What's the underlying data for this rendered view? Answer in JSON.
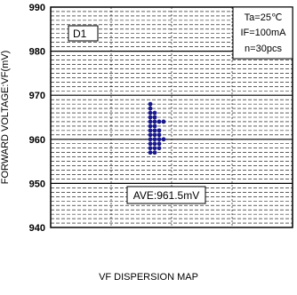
{
  "chart_data": {
    "type": "scatter",
    "ylabel": "FORWARD VOLTAGE:VF(mV)",
    "xlabel": "",
    "ylim": [
      940,
      990
    ],
    "yticks": [
      940,
      950,
      960,
      970,
      980,
      990
    ],
    "grid": true,
    "annotations": {
      "label": "D1",
      "conditions": [
        "Ta=25℃",
        "IF=100mA",
        "n=30pcs"
      ],
      "average": "AVE:961.5mV"
    },
    "series": [
      {
        "color": "#1a1a8c",
        "points": [
          {
            "col": 0,
            "y": 957
          },
          {
            "col": 0,
            "y": 958
          },
          {
            "col": 0,
            "y": 959
          },
          {
            "col": 0,
            "y": 960
          },
          {
            "col": 0,
            "y": 961
          },
          {
            "col": 0,
            "y": 962
          },
          {
            "col": 0,
            "y": 963
          },
          {
            "col": 0,
            "y": 964
          },
          {
            "col": 0,
            "y": 965
          },
          {
            "col": 0,
            "y": 966
          },
          {
            "col": 0,
            "y": 967
          },
          {
            "col": 0,
            "y": 968
          },
          {
            "col": 1,
            "y": 957
          },
          {
            "col": 1,
            "y": 958
          },
          {
            "col": 1,
            "y": 959
          },
          {
            "col": 1,
            "y": 960
          },
          {
            "col": 1,
            "y": 961
          },
          {
            "col": 1,
            "y": 962
          },
          {
            "col": 1,
            "y": 963
          },
          {
            "col": 1,
            "y": 964
          },
          {
            "col": 1,
            "y": 965
          },
          {
            "col": 1,
            "y": 966
          },
          {
            "col": 2,
            "y": 958
          },
          {
            "col": 2,
            "y": 959
          },
          {
            "col": 2,
            "y": 960
          },
          {
            "col": 2,
            "y": 961
          },
          {
            "col": 2,
            "y": 962
          },
          {
            "col": 2,
            "y": 964
          },
          {
            "col": 3,
            "y": 960
          },
          {
            "col": 3,
            "y": 964
          }
        ]
      }
    ]
  },
  "caption": "VF DISPERSION MAP"
}
